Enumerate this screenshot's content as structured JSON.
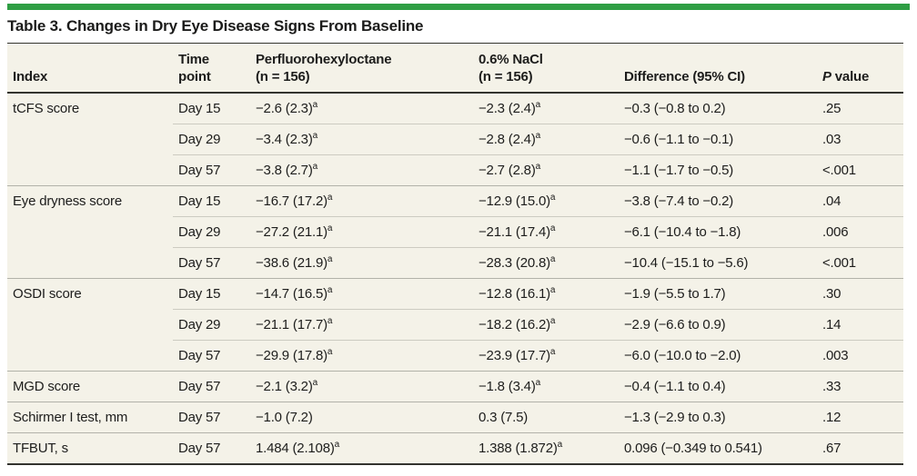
{
  "colors": {
    "accent_green": "#2f9e44",
    "table_background": "#f4f2e8",
    "rule_dark": "#33332e",
    "rule_group": "#b2b2a9",
    "rule_sub": "#cccbc1",
    "text": "#1d1d1c"
  },
  "title": "Table 3. Changes in Dry Eye Disease Signs From Baseline",
  "table": {
    "columns": [
      {
        "line1": "Index"
      },
      {
        "line1": "Time",
        "line2": "point"
      },
      {
        "line1": "Perfluorohexyloctane",
        "line2": "(n = 156)"
      },
      {
        "line1": "0.6% NaCl",
        "line2": "(n = 156)"
      },
      {
        "line1": "Difference (95% CI)"
      },
      {
        "italic": "P",
        "rest": " value"
      }
    ],
    "footnote_marker": "a",
    "groups": [
      {
        "index": "tCFS score",
        "rows": [
          {
            "time": "Day 15",
            "pfho": "−2.6 (2.3)",
            "pfho_sup": "a",
            "nacl": "−2.3 (2.4)",
            "nacl_sup": "a",
            "diff": "−0.3 (−0.8 to 0.2)",
            "p": ".25"
          },
          {
            "time": "Day 29",
            "pfho": "−3.4 (2.3)",
            "pfho_sup": "a",
            "nacl": "−2.8 (2.4)",
            "nacl_sup": "a",
            "diff": "−0.6 (−1.1 to −0.1)",
            "p": ".03"
          },
          {
            "time": "Day 57",
            "pfho": "−3.8 (2.7)",
            "pfho_sup": "a",
            "nacl": "−2.7 (2.8)",
            "nacl_sup": "a",
            "diff": "−1.1 (−1.7 to −0.5)",
            "p": "<.001"
          }
        ]
      },
      {
        "index": "Eye dryness score",
        "rows": [
          {
            "time": "Day 15",
            "pfho": "−16.7 (17.2)",
            "pfho_sup": "a",
            "nacl": "−12.9 (15.0)",
            "nacl_sup": "a",
            "diff": "−3.8 (−7.4 to −0.2)",
            "p": ".04"
          },
          {
            "time": "Day 29",
            "pfho": "−27.2 (21.1)",
            "pfho_sup": "a",
            "nacl": "−21.1 (17.4)",
            "nacl_sup": "a",
            "diff": "−6.1 (−10.4 to −1.8)",
            "p": ".006"
          },
          {
            "time": "Day 57",
            "pfho": "−38.6 (21.9)",
            "pfho_sup": "a",
            "nacl": "−28.3 (20.8)",
            "nacl_sup": "a",
            "diff": "−10.4 (−15.1 to −5.6)",
            "p": "<.001"
          }
        ]
      },
      {
        "index": "OSDI score",
        "rows": [
          {
            "time": "Day 15",
            "pfho": "−14.7 (16.5)",
            "pfho_sup": "a",
            "nacl": "−12.8 (16.1)",
            "nacl_sup": "a",
            "diff": "−1.9 (−5.5 to 1.7)",
            "p": ".30"
          },
          {
            "time": "Day 29",
            "pfho": "−21.1 (17.7)",
            "pfho_sup": "a",
            "nacl": "−18.2 (16.2)",
            "nacl_sup": "a",
            "diff": "−2.9 (−6.6 to 0.9)",
            "p": ".14"
          },
          {
            "time": "Day 57",
            "pfho": "−29.9 (17.8)",
            "pfho_sup": "a",
            "nacl": "−23.9 (17.7)",
            "nacl_sup": "a",
            "diff": "−6.0 (−10.0 to −2.0)",
            "p": ".003"
          }
        ]
      },
      {
        "index": "MGD score",
        "rows": [
          {
            "time": "Day 57",
            "pfho": "−2.1 (3.2)",
            "pfho_sup": "a",
            "nacl": "−1.8 (3.4)",
            "nacl_sup": "a",
            "diff": "−0.4 (−1.1 to 0.4)",
            "p": ".33"
          }
        ]
      },
      {
        "index": "Schirmer I test, mm",
        "rows": [
          {
            "time": "Day 57",
            "pfho": "−1.0 (7.2)",
            "nacl": "0.3 (7.5)",
            "diff": "−1.3 (−2.9 to 0.3)",
            "p": ".12"
          }
        ]
      },
      {
        "index": "TFBUT, s",
        "rows": [
          {
            "time": "Day 57",
            "pfho": "1.484 (2.108)",
            "pfho_sup": "a",
            "nacl": "1.388 (1.872)",
            "nacl_sup": "a",
            "diff": "0.096 (−0.349 to 0.541)",
            "p": ".67"
          }
        ]
      }
    ]
  }
}
